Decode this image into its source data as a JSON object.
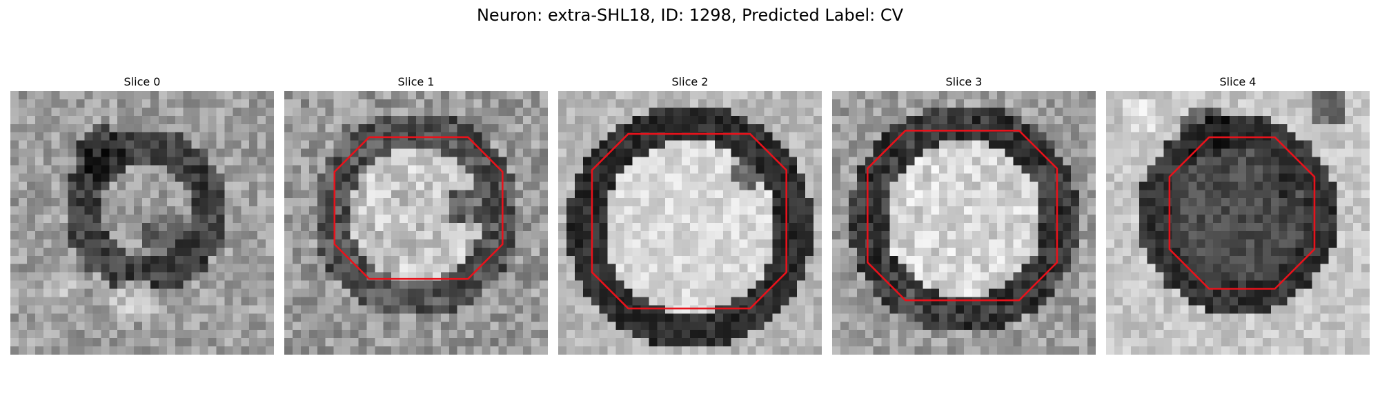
{
  "figure": {
    "title": "Neuron: extra-SHL18, ID: 1298, Predicted Label: CV",
    "contour_color": "#e8121b"
  },
  "slices": [
    {
      "label": "Slice 0",
      "has_contour": false,
      "texture": "dark ring with dark cap at top-left, mid-gray interior"
    },
    {
      "label": "Slice 1",
      "has_contour": true,
      "texture": "bright noisy interior, dark rim"
    },
    {
      "label": "Slice 2",
      "has_contour": true,
      "texture": "bright center, dark rim"
    },
    {
      "label": "Slice 3",
      "has_contour": true,
      "texture": "bright center, dark rim"
    },
    {
      "label": "Slice 4",
      "has_contour": true,
      "texture": "dark interior, bright background"
    }
  ]
}
